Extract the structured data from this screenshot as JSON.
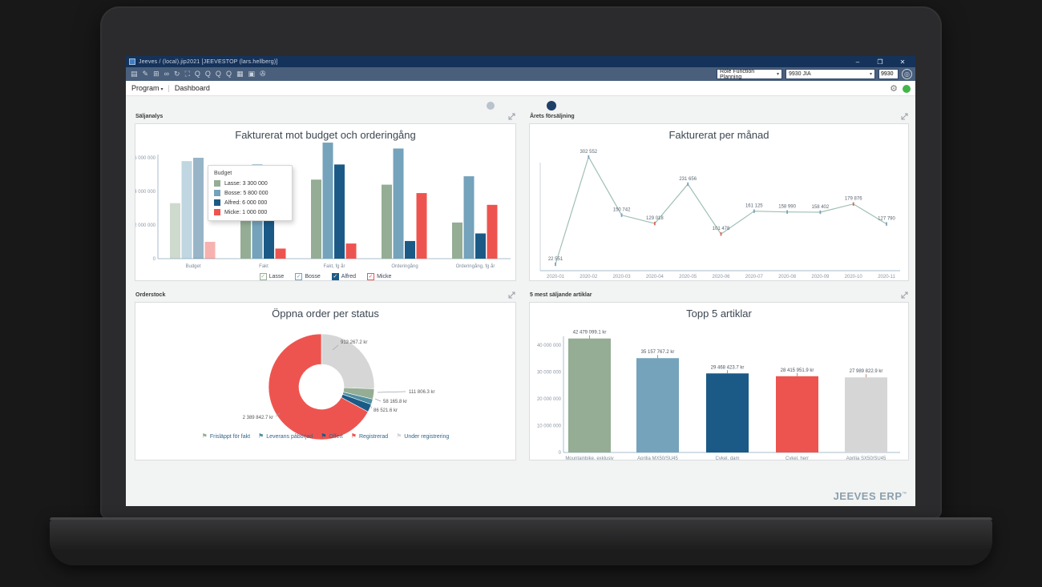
{
  "window": {
    "title": "Jeeves / (local).jip2021 [JEEVESTOP (lars.hellberg)]",
    "controls": [
      {
        "name": "minimize",
        "glyph": "–"
      },
      {
        "name": "maximize",
        "glyph": "❐"
      },
      {
        "name": "close",
        "glyph": "✕"
      }
    ]
  },
  "toolbar": {
    "icons": [
      {
        "name": "new-document",
        "glyph": "▤"
      },
      {
        "name": "edit",
        "glyph": "✎"
      },
      {
        "name": "grid",
        "glyph": "⊞"
      },
      {
        "name": "link",
        "glyph": "∞"
      },
      {
        "name": "refresh",
        "glyph": "↻"
      },
      {
        "name": "delete",
        "glyph": "⛶"
      },
      {
        "name": "search",
        "glyph": "Q"
      },
      {
        "name": "zoom-in",
        "glyph": "Q"
      },
      {
        "name": "zoom-out",
        "glyph": "Q"
      },
      {
        "name": "zoom-reset",
        "glyph": "Q"
      },
      {
        "name": "report",
        "glyph": "▦"
      },
      {
        "name": "print",
        "glyph": "▣"
      },
      {
        "name": "attachment",
        "glyph": "✇"
      }
    ],
    "role_selector_value": "Role Function Planning",
    "context_selector_value": "9930 JIA",
    "quick_input_value": "9930",
    "caret": "▾",
    "round_button_glyph": "◎"
  },
  "menubar": {
    "program": "Program",
    "caret": "▾",
    "separator": "|",
    "page": "Dashboard",
    "gear_glyph": "⚙"
  },
  "pagination": {
    "dot_count": 2,
    "active_index": 1
  },
  "brand": {
    "text": "JEEVES ERP",
    "tm": "™"
  },
  "colors": {
    "titlebar_bg": "#15325a",
    "toolbar_bg": "#4a5f7b",
    "content_bg": "#f2f3f3",
    "status_green": "#43b649",
    "dot_active": "#1f3f66",
    "dot_inactive": "#b9c3cb",
    "brand_color": "#8aa0ac"
  },
  "chart_data": [
    {
      "type": "bar",
      "panel_label": "Säljanalys",
      "title": "Fakturerat mot budget och orderingång",
      "categories": [
        "Budget",
        "Fakt",
        "Fakt, fg år",
        "Orderingång",
        "Orderingång, fg år"
      ],
      "muted_category_index": 0,
      "series": [
        {
          "name": "Lasse",
          "color": "#94ad94",
          "values": [
            3300000,
            4300000,
            4700000,
            4400000,
            2150000
          ]
        },
        {
          "name": "Bosse",
          "color": "#74a3bb",
          "values": [
            5800000,
            5600000,
            6900000,
            6550000,
            4900000
          ]
        },
        {
          "name": "Alfred",
          "color": "#1b5a86",
          "values": [
            6000000,
            4500000,
            5600000,
            1050000,
            1500000
          ]
        },
        {
          "name": "Micke",
          "color": "#ee544f",
          "values": [
            1000000,
            600000,
            900000,
            3900000,
            3200000
          ]
        }
      ],
      "legend_filled": [
        false,
        false,
        true,
        false
      ],
      "yticks": [
        0,
        2000000,
        4000000,
        6000000
      ],
      "ytick_labels": [
        "0",
        "2 000 000",
        "4 000 000",
        "6 000 000"
      ],
      "ylim": [
        0,
        7200000
      ],
      "grid": false,
      "legend_position": "bottom",
      "tooltip": {
        "title": "Budget",
        "rows": [
          {
            "name": "Lasse",
            "value": "3 300 000"
          },
          {
            "name": "Bosse",
            "value": "5 800 000"
          },
          {
            "name": "Alfred",
            "value": "6 000 000"
          },
          {
            "name": "Micke",
            "value": "1 000 000"
          }
        ]
      }
    },
    {
      "type": "line",
      "panel_label": "Årets försäljning",
      "title": "Fakturerat per månad",
      "x": [
        "2020-01",
        "2020-02",
        "2020-03",
        "2020-04",
        "2020-05",
        "2020-06",
        "2020-07",
        "2020-08",
        "2020-09",
        "2020-10",
        "2020-11"
      ],
      "values": [
        22551,
        302552,
        150742,
        129018,
        231656,
        101478,
        161125,
        158990,
        158402,
        179876,
        127790
      ],
      "labels": [
        "22 551",
        "302 552",
        "150 742",
        "129 018",
        "231 656",
        "101 478",
        "161 125",
        "158 990",
        "158 402",
        "179 876",
        "127 790"
      ],
      "line_color": "#9fbfb5",
      "ylim": [
        0,
        330000
      ],
      "grid": false
    },
    {
      "type": "pie",
      "panel_label": "Orderstock",
      "title": "Öppna order per status",
      "donut": true,
      "slices": [
        {
          "name": "Under registrering",
          "value": 912267.2,
          "label": "912 267.2 kr",
          "color": "#d6d6d6"
        },
        {
          "name": "Frisläppt för fakt",
          "value": 111806.3,
          "label": "111 806.3 kr",
          "color": "#94ad94"
        },
        {
          "name": "Leverans påbörjad",
          "value": 58165.8,
          "label": "58 165.8 kr",
          "color": "#4f8fa3"
        },
        {
          "name": "Offert",
          "value": 86521.6,
          "label": "86 521.6 kr",
          "color": "#1b5a86"
        },
        {
          "name": "Registrerad",
          "value": 2389842.7,
          "label": "2 389 842.7 kr",
          "color": "#ee544f"
        }
      ],
      "legend_order": [
        "Frisläppt för fakt",
        "Leverans påbörjad",
        "Offert",
        "Registrerad",
        "Under registrering"
      ],
      "legend_position": "bottom"
    },
    {
      "type": "bar",
      "panel_label": "5 mest säljande artiklar",
      "title": "Topp 5 artiklar",
      "categories": [
        "Mountainbike, exklusiv",
        "Aprilia MX50/SU45",
        "Cykel, dam",
        "Cykel, herr",
        "Aprilia SX50/SU45"
      ],
      "values": [
        42479099.1,
        35157767.2,
        29468423.7,
        28415951.9,
        27989822.9
      ],
      "bar_labels": [
        "42 479 099.1 kr",
        "35 157 767.2 kr",
        "29 468 423.7 kr",
        "28 415 951.9 kr",
        "27 989 822.9 kr"
      ],
      "colors": [
        "#94ad94",
        "#74a3bb",
        "#1b5a86",
        "#ee544f",
        "#d6d6d6"
      ],
      "yticks": [
        0,
        10000000,
        20000000,
        30000000,
        40000000
      ],
      "ytick_labels": [
        "0",
        "10 000 000",
        "20 000 000",
        "30 000 000",
        "40 000 000"
      ],
      "ylim": [
        0,
        46000000
      ],
      "grid": false
    }
  ]
}
